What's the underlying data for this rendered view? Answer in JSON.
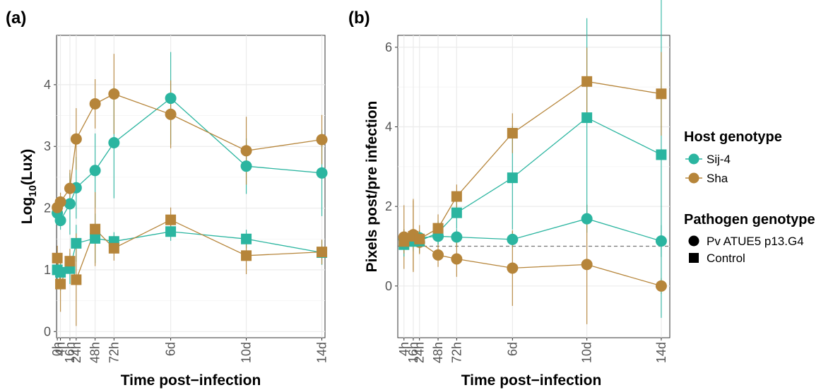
{
  "colors": {
    "Sij-4": "#2bb5a0",
    "Sha": "#b6853a"
  },
  "legend": {
    "host_title": "Host genotype",
    "host_items": [
      {
        "label": "Sij-4",
        "color": "#2bb5a0"
      },
      {
        "label": "Sha",
        "color": "#b6853a"
      }
    ],
    "pathogen_title": "Pathogen genotype",
    "pathogen_items": [
      {
        "label": "Pv ATUE5 p13.G4",
        "shape": "circle"
      },
      {
        "label": "Control",
        "shape": "square"
      }
    ]
  },
  "chart_data": [
    {
      "panel_label": "(a)",
      "type": "line",
      "xlabel": "Time post−infection",
      "ylabel_base": "Log",
      "ylabel_sub": "10",
      "ylabel_rest": "(Lux)",
      "xlim": [
        -1,
        340
      ],
      "ylim": [
        -0.1,
        4.8
      ],
      "x_ticks": [
        {
          "x": 0,
          "label": "0h"
        },
        {
          "x": 4,
          "label": "4h"
        },
        {
          "x": 16,
          "label": "16h"
        },
        {
          "x": 24,
          "label": "24h"
        },
        {
          "x": 48,
          "label": "48h"
        },
        {
          "x": 72,
          "label": "72h"
        },
        {
          "x": 144,
          "label": "6d"
        },
        {
          "x": 240,
          "label": "10d"
        },
        {
          "x": 336,
          "label": "14d"
        }
      ],
      "y_ticks": [
        0,
        1,
        2,
        3,
        4
      ],
      "grid": true,
      "series": [
        {
          "host": "Sij-4",
          "pathogen": "Pv ATUE5 p13.G4",
          "shape": "circle",
          "x": [
            0,
            4,
            16,
            24,
            48,
            72,
            144,
            240,
            336
          ],
          "y": [
            1.92,
            1.8,
            2.07,
            2.33,
            2.61,
            3.06,
            3.78,
            2.68,
            2.57
          ],
          "err": [
            0.15,
            0.15,
            0.5,
            0.5,
            0.6,
            0.9,
            0.75,
            0.45,
            0.7
          ]
        },
        {
          "host": "Sha",
          "pathogen": "Pv ATUE5 p13.G4",
          "shape": "circle",
          "x": [
            0,
            4,
            16,
            24,
            48,
            72,
            144,
            240,
            336
          ],
          "y": [
            2.01,
            2.1,
            2.32,
            3.12,
            3.69,
            3.85,
            3.52,
            2.93,
            3.11
          ],
          "err": [
            0.1,
            0.15,
            0.3,
            0.5,
            0.4,
            0.65,
            0.55,
            0.55,
            0.4
          ]
        },
        {
          "host": "Sij-4",
          "pathogen": "Control",
          "shape": "square",
          "x": [
            0,
            4,
            16,
            24,
            48,
            72,
            144,
            240,
            336
          ],
          "y": [
            1.0,
            0.96,
            1.02,
            1.43,
            1.51,
            1.46,
            1.62,
            1.5,
            1.28
          ],
          "err": [
            0.2,
            0.3,
            0.25,
            0.3,
            0.4,
            0.15,
            0.15,
            0.15,
            0.2
          ]
        },
        {
          "host": "Sha",
          "pathogen": "Control",
          "shape": "square",
          "x": [
            0,
            4,
            16,
            24,
            48,
            72,
            144,
            240,
            336
          ],
          "y": [
            1.19,
            0.77,
            1.14,
            0.84,
            1.66,
            1.35,
            1.81,
            1.23,
            1.29
          ],
          "err": [
            0.2,
            0.45,
            0.2,
            0.75,
            0.6,
            0.2,
            0.2,
            0.3,
            0.2
          ]
        }
      ]
    },
    {
      "panel_label": "(b)",
      "type": "line",
      "xlabel": "Time post−infection",
      "ylabel": "Pixels post/pre infection",
      "xlim": [
        -4,
        347
      ],
      "ylim": [
        -1.3,
        6.3
      ],
      "x_ticks": [
        {
          "x": 4,
          "label": "4h"
        },
        {
          "x": 16,
          "label": "16h"
        },
        {
          "x": 24,
          "label": "24h"
        },
        {
          "x": 48,
          "label": "48h"
        },
        {
          "x": 72,
          "label": "72h"
        },
        {
          "x": 144,
          "label": "6d"
        },
        {
          "x": 240,
          "label": "10d"
        },
        {
          "x": 336,
          "label": "14d"
        }
      ],
      "y_ticks": [
        0,
        2,
        4,
        6
      ],
      "grid": true,
      "reference_line_y": 1,
      "series": [
        {
          "host": "Sij-4",
          "pathogen": "Pv ATUE5 p13.G4",
          "shape": "circle",
          "x": [
            4,
            16,
            24,
            48,
            72,
            144,
            240,
            336
          ],
          "y": [
            1.18,
            1.22,
            1.21,
            1.25,
            1.23,
            1.17,
            1.69,
            1.13
          ],
          "err": [
            0.25,
            0.2,
            0.15,
            0.2,
            0.2,
            0.2,
            0.35,
            0.4
          ]
        },
        {
          "host": "Sha",
          "pathogen": "Pv ATUE5 p13.G4",
          "shape": "circle",
          "x": [
            4,
            16,
            24,
            48,
            72,
            144,
            240,
            336
          ],
          "y": [
            1.23,
            1.29,
            1.1,
            0.78,
            0.68,
            0.45,
            0.54,
            0.0
          ],
          "err": [
            0.8,
            0.9,
            0.3,
            0.3,
            0.45,
            0.95,
            1.5,
            0.2
          ]
        },
        {
          "host": "Sij-4",
          "pathogen": "Control",
          "shape": "square",
          "x": [
            4,
            16,
            24,
            48,
            72,
            144,
            240,
            336
          ],
          "y": [
            1.04,
            1.12,
            1.13,
            1.34,
            1.84,
            2.72,
            4.23,
            3.3
          ],
          "err": [
            0.3,
            0.25,
            0.25,
            0.3,
            0.4,
            1.3,
            2.5,
            4.1
          ]
        },
        {
          "host": "Sha",
          "pathogen": "Control",
          "shape": "square",
          "x": [
            4,
            16,
            24,
            48,
            72,
            144,
            240,
            336
          ],
          "y": [
            1.12,
            1.25,
            1.18,
            1.45,
            2.25,
            3.84,
            5.14,
            4.83
          ],
          "err": [
            0.3,
            0.9,
            0.35,
            0.35,
            0.3,
            0.5,
            0.85,
            1.05
          ]
        }
      ]
    }
  ]
}
